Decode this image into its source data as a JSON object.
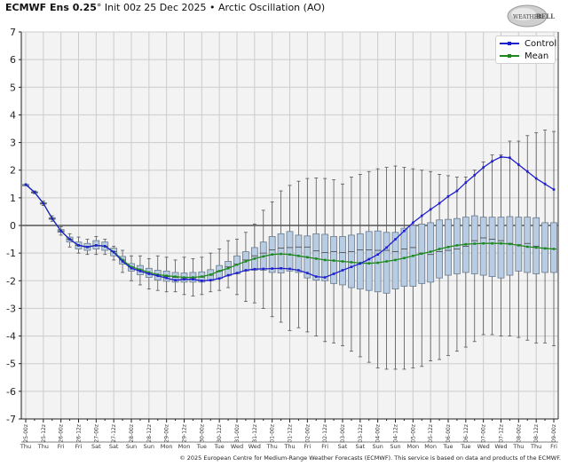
{
  "header": {
    "title_bold": "ECMWF Ens 0.25",
    "title_degree": "°",
    "title_rest": " Init 00z 25 Dec 2025 • Arctic Oscillation (AO)",
    "logo_text": "WeatherBELL"
  },
  "legend": {
    "control_label": "Control",
    "mean_label": "Mean",
    "control_color": "#1f1fd0",
    "mean_color": "#1e8a1e"
  },
  "footer": {
    "copyright": "© 2025 European Centre for Medium-Range Weather Forecasts (ECMWF). This service is based on data and products of the ECMWF."
  },
  "colors": {
    "plot_bg": "#f3f3f3",
    "grid": "#cccccc",
    "box_fill": "#b8cce4",
    "box_stroke": "#6a7a8a",
    "whisker": "#555555",
    "zero_line": "#555555"
  },
  "chart_data": {
    "type": "box",
    "title": "ECMWF Ens 0.25° Init 00z 25 Dec 2025 • Arctic Oscillation (AO)",
    "xlabel": "",
    "ylabel": "",
    "ylim": [
      -7,
      7
    ],
    "yticks": [
      7,
      6,
      5,
      4,
      3,
      2,
      1,
      0,
      -1,
      -2,
      -3,
      -4,
      -5,
      -6,
      -7
    ],
    "grid": true,
    "legend_position": "upper right",
    "x_labels": [
      "25-00z",
      "25-12z",
      "26-00z",
      "26-12z",
      "27-00z",
      "27-12z",
      "28-00z",
      "28-12z",
      "29-00z",
      "29-12z",
      "30-00z",
      "30-12z",
      "31-00z",
      "31-12z",
      "01-00z",
      "01-12z",
      "02-00z",
      "02-12z",
      "03-00z",
      "03-12z",
      "04-00z",
      "04-12z",
      "05-00z",
      "05-12z",
      "06-00z",
      "06-12z",
      "07-00z",
      "07-12z",
      "08-00z",
      "08-12z",
      "09-00z"
    ],
    "x_days": [
      "Thu",
      "Thu",
      "Fri",
      "Fri",
      "Sat",
      "Sat",
      "Sun",
      "Sun",
      "Mon",
      "Mon",
      "Tue",
      "Tue",
      "Wed",
      "Wed",
      "Thu",
      "Thu",
      "Fri",
      "Fri",
      "Sat",
      "Sat",
      "Sun",
      "Sun",
      "Mon",
      "Mon",
      "Tue",
      "Tue",
      "Wed",
      "Wed",
      "Thu",
      "Thu",
      "Fri"
    ],
    "step_hours": 6,
    "series": [
      {
        "name": "Control",
        "values": [
          1.48,
          1.2,
          0.8,
          0.25,
          -0.2,
          -0.5,
          -0.72,
          -0.78,
          -0.72,
          -0.75,
          -0.97,
          -1.3,
          -1.55,
          -1.65,
          -1.75,
          -1.82,
          -1.9,
          -1.98,
          -1.95,
          -1.95,
          -2.0,
          -1.98,
          -1.92,
          -1.8,
          -1.72,
          -1.62,
          -1.58,
          -1.57,
          -1.56,
          -1.55,
          -1.57,
          -1.62,
          -1.72,
          -1.85,
          -1.88,
          -1.75,
          -1.62,
          -1.5,
          -1.38,
          -1.22,
          -1.05,
          -0.8,
          -0.5,
          -0.2,
          0.1,
          0.35,
          0.58,
          0.8,
          1.05,
          1.25,
          1.55,
          1.82,
          2.1,
          2.32,
          2.48,
          2.45,
          2.2,
          1.95,
          1.7,
          1.5,
          1.3
        ]
      },
      {
        "name": "Mean",
        "values": [
          1.48,
          1.2,
          0.8,
          0.25,
          -0.2,
          -0.5,
          -0.72,
          -0.78,
          -0.72,
          -0.75,
          -0.95,
          -1.25,
          -1.5,
          -1.6,
          -1.7,
          -1.78,
          -1.82,
          -1.85,
          -1.88,
          -1.88,
          -1.85,
          -1.78,
          -1.65,
          -1.55,
          -1.42,
          -1.3,
          -1.2,
          -1.12,
          -1.05,
          -1.03,
          -1.05,
          -1.1,
          -1.15,
          -1.2,
          -1.25,
          -1.27,
          -1.3,
          -1.33,
          -1.36,
          -1.37,
          -1.35,
          -1.3,
          -1.25,
          -1.18,
          -1.1,
          -1.02,
          -0.95,
          -0.85,
          -0.78,
          -0.72,
          -0.68,
          -0.66,
          -0.65,
          -0.65,
          -0.65,
          -0.67,
          -0.72,
          -0.77,
          -0.8,
          -0.83,
          -0.85
        ]
      }
    ],
    "boxes": {
      "q1": [
        1.48,
        1.18,
        0.78,
        0.22,
        -0.25,
        -0.6,
        -0.85,
        -0.9,
        -0.85,
        -0.9,
        -1.1,
        -1.4,
        -1.65,
        -1.78,
        -1.88,
        -1.98,
        -2.02,
        -2.05,
        -2.05,
        -2.05,
        -2.05,
        -2.0,
        -1.92,
        -1.82,
        -1.75,
        -1.65,
        -1.62,
        -1.62,
        -1.7,
        -1.72,
        -1.65,
        -1.7,
        -1.9,
        -1.98,
        -2.0,
        -2.1,
        -2.15,
        -2.25,
        -2.3,
        -2.35,
        -2.4,
        -2.45,
        -2.3,
        -2.2,
        -2.2,
        -2.1,
        -2.05,
        -1.9,
        -1.8,
        -1.75,
        -1.7,
        -1.75,
        -1.8,
        -1.85,
        -1.9,
        -1.8,
        -1.65,
        -1.7,
        -1.75,
        -1.7,
        -1.7
      ],
      "median": [
        1.48,
        1.2,
        0.8,
        0.25,
        -0.2,
        -0.5,
        -0.72,
        -0.78,
        -0.72,
        -0.75,
        -0.95,
        -1.25,
        -1.5,
        -1.6,
        -1.72,
        -1.8,
        -1.85,
        -1.88,
        -1.9,
        -1.9,
        -1.87,
        -1.8,
        -1.65,
        -1.5,
        -1.4,
        -1.25,
        -1.1,
        -1.0,
        -0.88,
        -0.82,
        -0.8,
        -0.78,
        -0.78,
        -0.92,
        -0.98,
        -0.95,
        -0.98,
        -0.95,
        -0.88,
        -0.88,
        -0.9,
        -0.9,
        -0.95,
        -0.85,
        -0.8,
        -1.0,
        -1.05,
        -0.95,
        -0.9,
        -0.85,
        -0.75,
        -0.55,
        -0.45,
        -0.5,
        -0.55,
        -0.65,
        -0.7,
        -0.65,
        -0.75,
        -0.82,
        -0.85
      ],
      "q3": [
        1.48,
        1.22,
        0.82,
        0.28,
        -0.15,
        -0.42,
        -0.6,
        -0.65,
        -0.55,
        -0.6,
        -0.82,
        -1.12,
        -1.38,
        -1.45,
        -1.55,
        -1.62,
        -1.65,
        -1.7,
        -1.72,
        -1.7,
        -1.68,
        -1.6,
        -1.45,
        -1.3,
        -1.1,
        -0.95,
        -0.8,
        -0.6,
        -0.4,
        -0.3,
        -0.22,
        -0.35,
        -0.38,
        -0.3,
        -0.32,
        -0.4,
        -0.4,
        -0.35,
        -0.3,
        -0.22,
        -0.2,
        -0.25,
        -0.25,
        -0.1,
        0.0,
        0.05,
        0.1,
        0.2,
        0.22,
        0.25,
        0.3,
        0.35,
        0.3,
        0.3,
        0.3,
        0.32,
        0.3,
        0.3,
        0.28,
        0.1,
        0.1
      ],
      "min": [
        1.48,
        1.15,
        0.72,
        0.15,
        -0.35,
        -0.78,
        -1.0,
        -1.05,
        -1.05,
        -1.05,
        -1.25,
        -1.7,
        -2.0,
        -2.15,
        -2.3,
        -2.35,
        -2.4,
        -2.4,
        -2.5,
        -2.55,
        -2.5,
        -2.4,
        -2.35,
        -2.25,
        -2.5,
        -2.75,
        -2.8,
        -3.0,
        -3.3,
        -3.5,
        -3.8,
        -3.7,
        -3.85,
        -4.0,
        -4.2,
        -4.25,
        -4.35,
        -4.55,
        -4.75,
        -4.95,
        -5.15,
        -5.2,
        -5.2,
        -5.2,
        -5.15,
        -5.1,
        -4.9,
        -4.85,
        -4.7,
        -4.55,
        -4.4,
        -4.2,
        -3.95,
        -3.95,
        -4.0,
        -4.0,
        -4.05,
        -4.15,
        -4.25,
        -4.25,
        -4.35
      ],
      "max": [
        1.48,
        1.25,
        0.88,
        0.35,
        -0.05,
        -0.3,
        -0.42,
        -0.5,
        -0.4,
        -0.5,
        -0.75,
        -0.9,
        -1.1,
        -1.1,
        -1.2,
        -1.1,
        -1.15,
        -1.25,
        -1.15,
        -1.2,
        -1.15,
        -1.0,
        -0.85,
        -0.55,
        -0.5,
        -0.25,
        0.05,
        0.55,
        0.85,
        1.25,
        1.45,
        1.6,
        1.7,
        1.72,
        1.7,
        1.65,
        1.5,
        1.75,
        1.85,
        1.95,
        2.05,
        2.1,
        2.15,
        2.1,
        2.05,
        2.0,
        1.95,
        1.85,
        1.8,
        1.75,
        1.75,
        2.0,
        2.3,
        2.55,
        2.55,
        3.05,
        3.05,
        3.25,
        3.35,
        3.45,
        3.4
      ]
    }
  }
}
